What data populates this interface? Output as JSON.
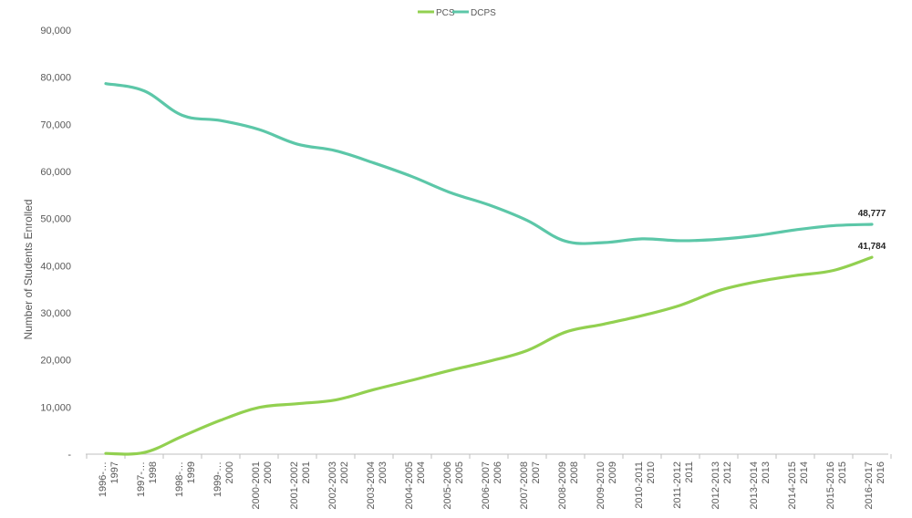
{
  "chart_data": {
    "type": "line",
    "title": "",
    "xlabel": "",
    "ylabel": "Number of Students Enrolled",
    "ylim": [
      0,
      90000
    ],
    "y_ticks": [
      "-",
      "10,000",
      "20,000",
      "30,000",
      "40,000",
      "50,000",
      "60,000",
      "70,000",
      "80,000",
      "90,000"
    ],
    "grid": false,
    "legend_position": "top-center",
    "categories": [
      [
        "1996-",
        "1997"
      ],
      [
        "1997-",
        "1998"
      ],
      [
        "1998-",
        "1999"
      ],
      [
        "1999-",
        "2000"
      ],
      [
        "2000-2001",
        "2000"
      ],
      [
        "2001-2002",
        "2001"
      ],
      [
        "2002-2003",
        "2002"
      ],
      [
        "2003-2004",
        "2003"
      ],
      [
        "2004-2005",
        "2004"
      ],
      [
        "2005-2006",
        "2005"
      ],
      [
        "2006-2007",
        "2006"
      ],
      [
        "2007-2008",
        "2007"
      ],
      [
        "2008-2009",
        "2008"
      ],
      [
        "2009-2010",
        "2009"
      ],
      [
        "2010-2011",
        "2010"
      ],
      [
        "2011-2012",
        "2011"
      ],
      [
        "2012-2013",
        "2012"
      ],
      [
        "2013-2014",
        "2013"
      ],
      [
        "2014-2015",
        "2014"
      ],
      [
        "2015-2016",
        "2015"
      ],
      [
        "2016-2017",
        "2016"
      ]
    ],
    "category_display": [
      [
        "1996-…",
        "1997"
      ],
      [
        "1997-…",
        "1998"
      ],
      [
        "1998-…",
        "1999"
      ],
      [
        "1999-…",
        "2000"
      ],
      [
        "2000-2001",
        "2000"
      ],
      [
        "2001-2002",
        "2001"
      ],
      [
        "2002-2003",
        "2002"
      ],
      [
        "2003-2004",
        "2003"
      ],
      [
        "2004-2005",
        "2004"
      ],
      [
        "2005-2006",
        "2005"
      ],
      [
        "2006-2007",
        "2006"
      ],
      [
        "2007-2008",
        "2007"
      ],
      [
        "2008-2009",
        "2008"
      ],
      [
        "2009-2010",
        "2009"
      ],
      [
        "2010-2011",
        "2010"
      ],
      [
        "2011-2012",
        "2011"
      ],
      [
        "2012-2013",
        "2012"
      ],
      [
        "2013-2014",
        "2013"
      ],
      [
        "2014-2015",
        "2014"
      ],
      [
        "2015-2016",
        "2015"
      ],
      [
        "2016-2017",
        "2016"
      ]
    ],
    "series": [
      {
        "name": "PCS",
        "color": "#92d050",
        "values": [
          160,
          340,
          3800,
          7200,
          9900,
          10700,
          11500,
          13700,
          15700,
          17800,
          19700,
          22000,
          25900,
          27600,
          29400,
          31600,
          34700,
          36600,
          37900,
          39000,
          41784
        ],
        "end_label": "41,784"
      },
      {
        "name": "DCPS",
        "color": "#5cc7a8",
        "values": [
          78650,
          77100,
          71900,
          70800,
          68900,
          65800,
          64400,
          61800,
          58900,
          55500,
          52900,
          49600,
          45200,
          44900,
          45700,
          45300,
          45600,
          46400,
          47600,
          48500,
          48777
        ],
        "end_label": "48,777"
      }
    ]
  }
}
